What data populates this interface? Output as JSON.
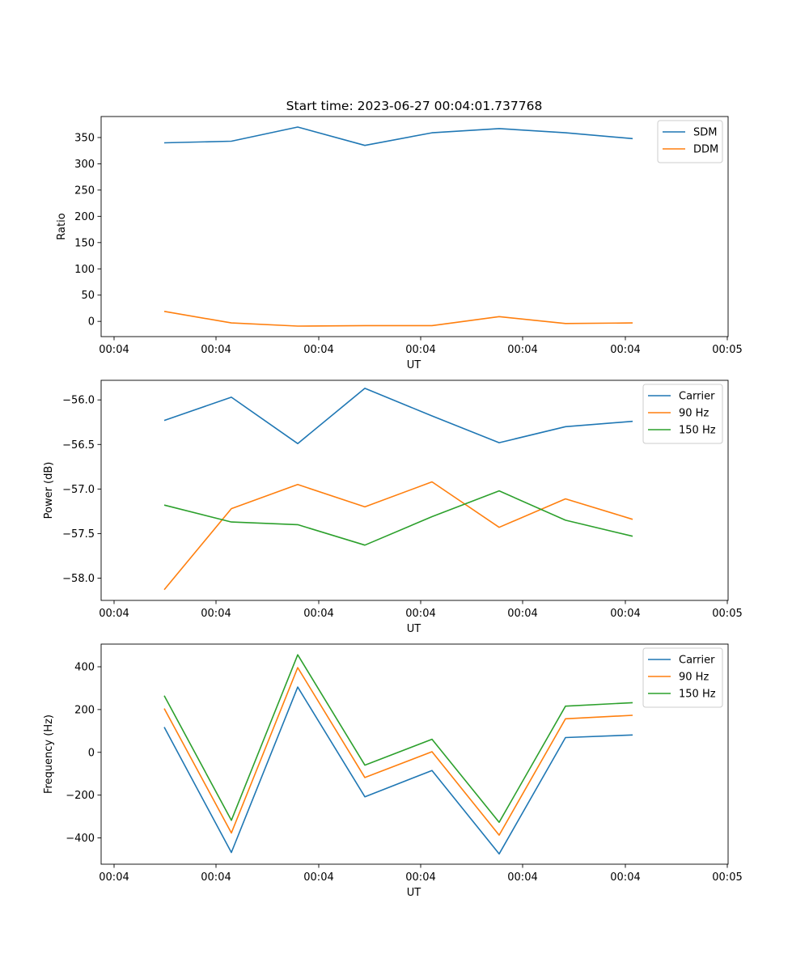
{
  "chart_data": [
    {
      "type": "line",
      "title": "Start time: 2023-06-27 00:04:01.737768",
      "xlabel": "UT",
      "ylabel": "Ratio",
      "x_tick_labels": [
        "00:04",
        "00:04",
        "00:04",
        "00:04",
        "00:04",
        "00:04",
        "00:05"
      ],
      "x": [
        1,
        2,
        3,
        4,
        5,
        6,
        7,
        8
      ],
      "ylim": [
        -29,
        390
      ],
      "y_ticks": [
        0,
        50,
        100,
        150,
        200,
        250,
        300,
        350
      ],
      "legend": "top-right",
      "series": [
        {
          "name": "SDM",
          "color": "#1f77b4",
          "values": [
            340,
            343,
            370,
            335,
            359,
            367,
            359,
            348
          ]
        },
        {
          "name": "DDM",
          "color": "#ff7f0e",
          "values": [
            19,
            -3,
            -9,
            -8,
            -8,
            9,
            -4,
            -3
          ]
        }
      ]
    },
    {
      "type": "line",
      "title": "",
      "xlabel": "UT",
      "ylabel": "Power (dB)",
      "x_tick_labels": [
        "00:04",
        "00:04",
        "00:04",
        "00:04",
        "00:04",
        "00:04",
        "00:05"
      ],
      "x": [
        1,
        2,
        3,
        4,
        5,
        6,
        7,
        8
      ],
      "ylim": [
        -58.25,
        -55.78
      ],
      "y_ticks": [
        -56.0,
        -56.5,
        -57.0,
        -57.5,
        -58.0
      ],
      "y_tick_labels": [
        "−56.0",
        "−56.5",
        "−57.0",
        "−57.5",
        "−58.0"
      ],
      "legend": "top-right",
      "series": [
        {
          "name": "Carrier",
          "color": "#1f77b4",
          "values": [
            -56.23,
            -55.97,
            -56.49,
            -55.87,
            -56.18,
            -56.48,
            -56.3,
            -56.24
          ]
        },
        {
          "name": "90 Hz",
          "color": "#ff7f0e",
          "values": [
            -58.13,
            -57.22,
            -56.95,
            -57.2,
            -56.92,
            -57.43,
            -57.11,
            -57.34
          ]
        },
        {
          "name": "150 Hz",
          "color": "#2ca02c",
          "values": [
            -57.18,
            -57.37,
            -57.4,
            -57.63,
            -57.31,
            -57.02,
            -57.35,
            -57.53
          ]
        }
      ]
    },
    {
      "type": "line",
      "title": "",
      "xlabel": "UT",
      "ylabel": "Frequency (Hz)",
      "x_tick_labels": [
        "00:04",
        "00:04",
        "00:04",
        "00:04",
        "00:04",
        "00:04",
        "00:05"
      ],
      "x": [
        1,
        2,
        3,
        4,
        5,
        6,
        7,
        8
      ],
      "ylim": [
        -523,
        506
      ],
      "y_ticks": [
        400,
        200,
        0,
        -200,
        -400
      ],
      "y_tick_labels": [
        "400",
        "200",
        "0",
        "−200",
        "−400"
      ],
      "legend": "top-right",
      "series": [
        {
          "name": "Carrier",
          "color": "#1f77b4",
          "values": [
            118,
            -468,
            305,
            -208,
            -85,
            -475,
            69,
            81
          ]
        },
        {
          "name": "90 Hz",
          "color": "#ff7f0e",
          "values": [
            205,
            -377,
            396,
            -118,
            3,
            -387,
            157,
            173
          ]
        },
        {
          "name": "150 Hz",
          "color": "#2ca02c",
          "values": [
            265,
            -318,
            456,
            -60,
            61,
            -327,
            216,
            232
          ]
        }
      ]
    }
  ]
}
